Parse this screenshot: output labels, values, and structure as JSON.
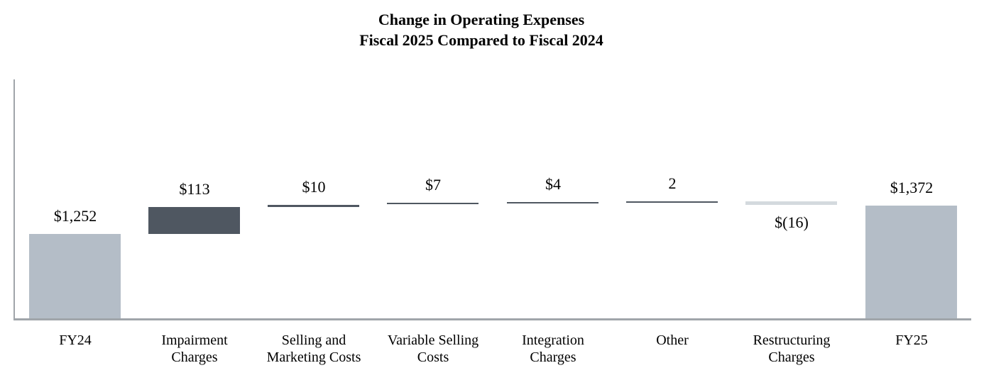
{
  "chart_data": {
    "type": "bar",
    "subtype": "waterfall",
    "title_lines": [
      "Change in Operating Expenses",
      "Fiscal 2025 Compared to Fiscal 2024"
    ],
    "xlabel": "",
    "ylabel": "",
    "grid": false,
    "legend": false,
    "y_axis": {
      "tick_labels_visible": false,
      "line_visible": true
    },
    "x_axis": {
      "tick_labels_visible": true,
      "line_visible": true
    },
    "colors": {
      "total_bar": "#b4bdc7",
      "increase_bar": "#4f5761",
      "decrease_bar": "#d4dade",
      "axis_line": "#a0a5aa",
      "text": "#000000"
    },
    "categories": [
      "FY24",
      "Impairment Charges",
      "Selling and Marketing Costs",
      "Variable Selling Costs",
      "Integration Charges",
      "Other",
      "Restructuring Charges",
      "FY25"
    ],
    "values": [
      1252,
      113,
      10,
      7,
      4,
      2,
      -16,
      1372
    ],
    "columns": [
      {
        "key": "fy24",
        "role": "total",
        "value": 1252,
        "start": 0,
        "end": 1252,
        "value_label": "$1,252",
        "label_lines": [
          "FY24"
        ]
      },
      {
        "key": "impairment-charges",
        "role": "increase",
        "value": 113,
        "start": 1252,
        "end": 1365,
        "value_label": "$113",
        "label_lines": [
          "Impairment",
          "Charges"
        ]
      },
      {
        "key": "selling-and-marketing-costs",
        "role": "increase",
        "value": 10,
        "start": 1365,
        "end": 1375,
        "value_label": "$10",
        "label_lines": [
          "Selling and",
          "Marketing Costs"
        ]
      },
      {
        "key": "variable-selling-costs",
        "role": "increase",
        "value": 7,
        "start": 1375,
        "end": 1382,
        "value_label": "$7",
        "label_lines": [
          "Variable Selling",
          "Costs"
        ]
      },
      {
        "key": "integration-charges",
        "role": "increase",
        "value": 4,
        "start": 1382,
        "end": 1386,
        "value_label": "$4",
        "label_lines": [
          "Integration",
          "Charges"
        ]
      },
      {
        "key": "other",
        "role": "increase",
        "value": 2,
        "start": 1386,
        "end": 1388,
        "value_label": "2",
        "label_lines": [
          "Other"
        ]
      },
      {
        "key": "restructuring-charges",
        "role": "decrease",
        "value": -16,
        "start": 1388,
        "end": 1372,
        "value_label": "$(16)",
        "label_lines": [
          "Restructuring",
          "Charges"
        ]
      },
      {
        "key": "fy25",
        "role": "total",
        "value": 1372,
        "start": 0,
        "end": 1372,
        "value_label": "$1,372",
        "label_lines": [
          "FY25"
        ]
      }
    ]
  }
}
